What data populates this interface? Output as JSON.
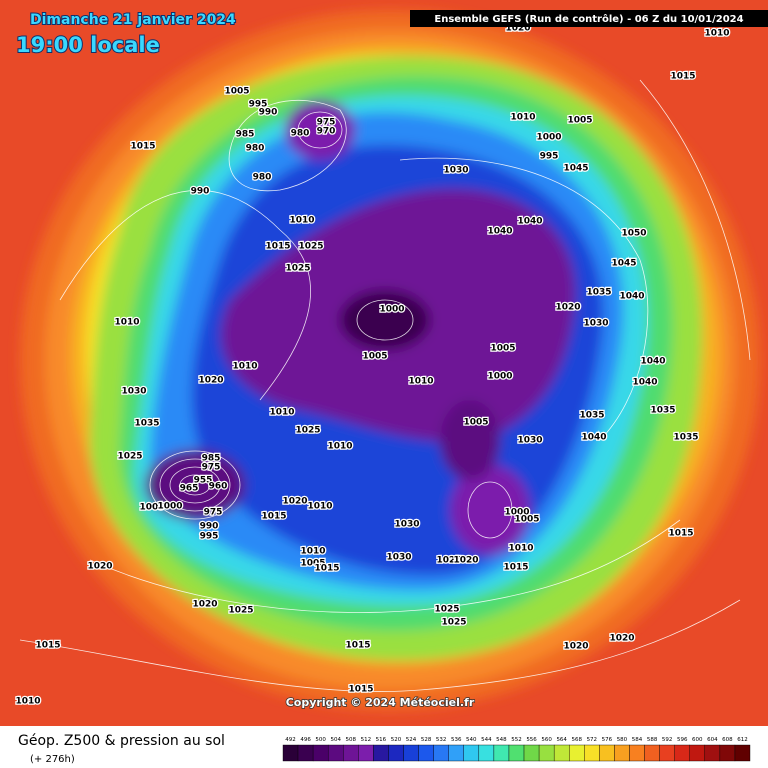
{
  "header": {
    "date": "Dimanche 21 janvier 2024",
    "time": "19:00 locale",
    "model": "Ensemble GEFS  (Run de contrôle)  -  06 Z du 10/01/2024"
  },
  "footer": {
    "title": "Géop. Z500 & pression au sol",
    "lead": "(+ 276h)",
    "copyright": "Copyright © 2024 Météociel.fr"
  },
  "scale": {
    "labels": [
      492,
      496,
      500,
      504,
      508,
      512,
      516,
      520,
      524,
      528,
      532,
      536,
      540,
      544,
      548,
      552,
      556,
      560,
      564,
      568,
      572,
      576,
      580,
      584,
      588,
      592,
      596,
      600,
      604,
      608,
      612
    ],
    "colors": [
      "#2a0038",
      "#3a0050",
      "#4a0068",
      "#5c0a80",
      "#6e1496",
      "#7c1eac",
      "#2818a0",
      "#1c28c0",
      "#1840d8",
      "#1c58ec",
      "#2878f4",
      "#30a0f8",
      "#30c8f0",
      "#38e0e0",
      "#40e8b0",
      "#50e070",
      "#70d848",
      "#98e040",
      "#c0e838",
      "#e8f030",
      "#f8e028",
      "#f8c020",
      "#f8a020",
      "#f88020",
      "#f06020",
      "#e84020",
      "#d82818",
      "#c01810",
      "#a01010",
      "#800808",
      "#600000"
    ]
  },
  "isobar_labels": [
    1015,
    990,
    980,
    980,
    985,
    990,
    995,
    1005,
    975,
    970,
    980,
    1010,
    1015,
    1025,
    1025,
    1010,
    1030,
    1035,
    1025,
    1020,
    1010,
    1010,
    1025,
    1000,
    1005,
    1010,
    1005,
    1000,
    1005,
    1030,
    1035,
    1040,
    1040,
    1040,
    1030,
    1045,
    1000,
    995,
    1005,
    1010,
    1050,
    1045,
    1035,
    1040,
    1020,
    1030,
    1040,
    1040,
    1035,
    1035,
    1015,
    1015,
    1010,
    1020,
    985,
    975,
    955,
    960,
    965,
    1005,
    990,
    995,
    975,
    1000,
    1015,
    1020,
    1010,
    1010,
    1000,
    1005,
    1010,
    1015,
    1030,
    1030,
    1025,
    1020,
    1025,
    1025,
    1010,
    1005,
    1015,
    1020,
    1020,
    1025,
    1015,
    1015,
    1015,
    1010,
    1020,
    1020
  ]
}
